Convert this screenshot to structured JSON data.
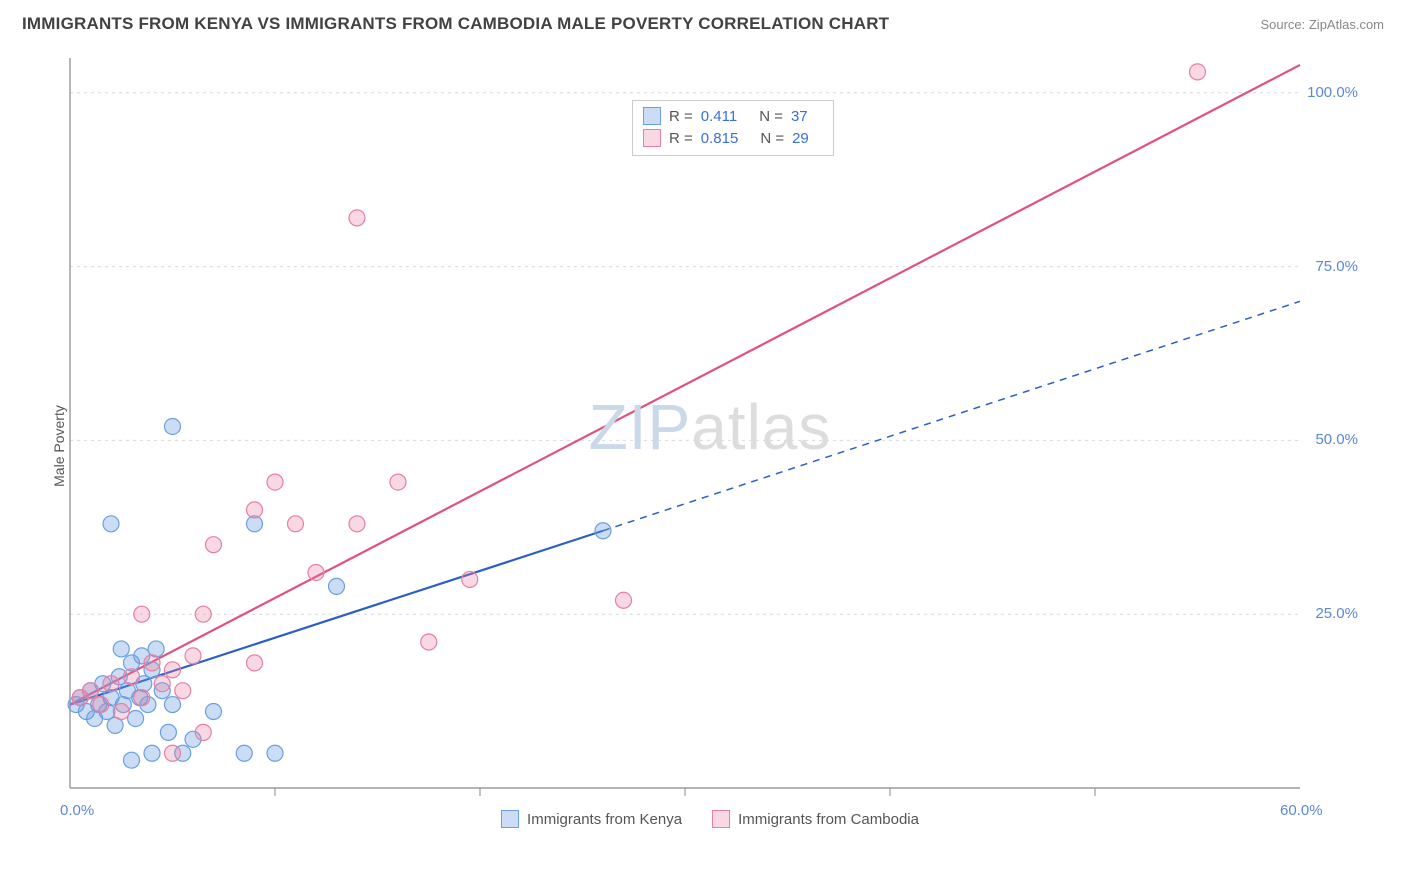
{
  "header": {
    "title": "IMMIGRANTS FROM KENYA VS IMMIGRANTS FROM CAMBODIA MALE POVERTY CORRELATION CHART",
    "source": "Source: ZipAtlas.com"
  },
  "watermark": {
    "zip": "ZIP",
    "atlas": "atlas"
  },
  "chart": {
    "type": "scatter",
    "ylabel": "Male Poverty",
    "background_color": "#ffffff",
    "grid_color": "#d9d9d9",
    "axis_color": "#888888",
    "tick_label_color": "#5b87d6",
    "xlim": [
      0,
      60
    ],
    "ylim": [
      0,
      105
    ],
    "xtick_step": 10,
    "yticks": [
      25,
      50,
      75,
      100
    ],
    "xtick_labels": [
      "0.0%",
      "60.0%"
    ],
    "ytick_labels": [
      "25.0%",
      "50.0%",
      "75.0%",
      "100.0%"
    ],
    "series": [
      {
        "name": "Immigrants from Kenya",
        "color": "#6b9fe0",
        "fill": "rgba(107,159,224,0.35)",
        "stroke": "#6b9fe0",
        "line_color": "#2b5fc6",
        "marker_radius": 8,
        "r_value": "0.411",
        "n_value": "37",
        "regression": {
          "x1": 0,
          "y1": 12,
          "x2": 26,
          "y2": 37,
          "dash_x2": 60,
          "dash_y2": 70
        },
        "points": [
          [
            0.3,
            12
          ],
          [
            0.5,
            13
          ],
          [
            0.8,
            11
          ],
          [
            1.0,
            14
          ],
          [
            1.2,
            10
          ],
          [
            1.4,
            12
          ],
          [
            1.6,
            15
          ],
          [
            1.8,
            11
          ],
          [
            2.0,
            13
          ],
          [
            2.2,
            9
          ],
          [
            2.4,
            16
          ],
          [
            2.6,
            12
          ],
          [
            2.8,
            14
          ],
          [
            3.0,
            18
          ],
          [
            3.2,
            10
          ],
          [
            3.4,
            13
          ],
          [
            3.6,
            15
          ],
          [
            3.8,
            12
          ],
          [
            4.0,
            17
          ],
          [
            4.5,
            14
          ],
          [
            5.0,
            12
          ],
          [
            5.5,
            5
          ],
          [
            6.0,
            7
          ],
          [
            4.0,
            5
          ],
          [
            7.0,
            11
          ],
          [
            3.0,
            4
          ],
          [
            2.5,
            20
          ],
          [
            3.5,
            19
          ],
          [
            4.2,
            20
          ],
          [
            2.0,
            38
          ],
          [
            9.0,
            38
          ],
          [
            5.0,
            52
          ],
          [
            13.0,
            29
          ],
          [
            26.0,
            37
          ],
          [
            10.0,
            5
          ],
          [
            8.5,
            5
          ],
          [
            4.8,
            8
          ]
        ]
      },
      {
        "name": "Immigrants from Cambodia",
        "color": "#e87fa2",
        "fill": "rgba(232,127,162,0.30)",
        "stroke": "#e87fa2",
        "line_color": "#e0517f",
        "marker_radius": 8,
        "r_value": "0.815",
        "n_value": "29",
        "regression": {
          "x1": 0,
          "y1": 12,
          "x2": 60,
          "y2": 104
        },
        "points": [
          [
            0.5,
            13
          ],
          [
            1.0,
            14
          ],
          [
            1.5,
            12
          ],
          [
            2.0,
            15
          ],
          [
            2.5,
            11
          ],
          [
            3.0,
            16
          ],
          [
            3.5,
            13
          ],
          [
            4.0,
            18
          ],
          [
            4.5,
            15
          ],
          [
            5.0,
            17
          ],
          [
            5.5,
            14
          ],
          [
            6.0,
            19
          ],
          [
            6.5,
            8
          ],
          [
            5.0,
            5
          ],
          [
            3.5,
            25
          ],
          [
            6.5,
            25
          ],
          [
            7.0,
            35
          ],
          [
            9.0,
            18
          ],
          [
            11.0,
            38
          ],
          [
            12.0,
            31
          ],
          [
            14.0,
            38
          ],
          [
            10.0,
            44
          ],
          [
            16.0,
            44
          ],
          [
            14.0,
            82
          ],
          [
            17.5,
            21
          ],
          [
            19.5,
            30
          ],
          [
            27.0,
            27
          ],
          [
            55.0,
            103
          ],
          [
            9.0,
            40
          ]
        ]
      }
    ],
    "legend_top": {
      "r_label": "R =",
      "n_label": "N ="
    },
    "legend_bottom": {
      "labels": [
        "Immigrants from Kenya",
        "Immigrants from Cambodia"
      ]
    }
  }
}
